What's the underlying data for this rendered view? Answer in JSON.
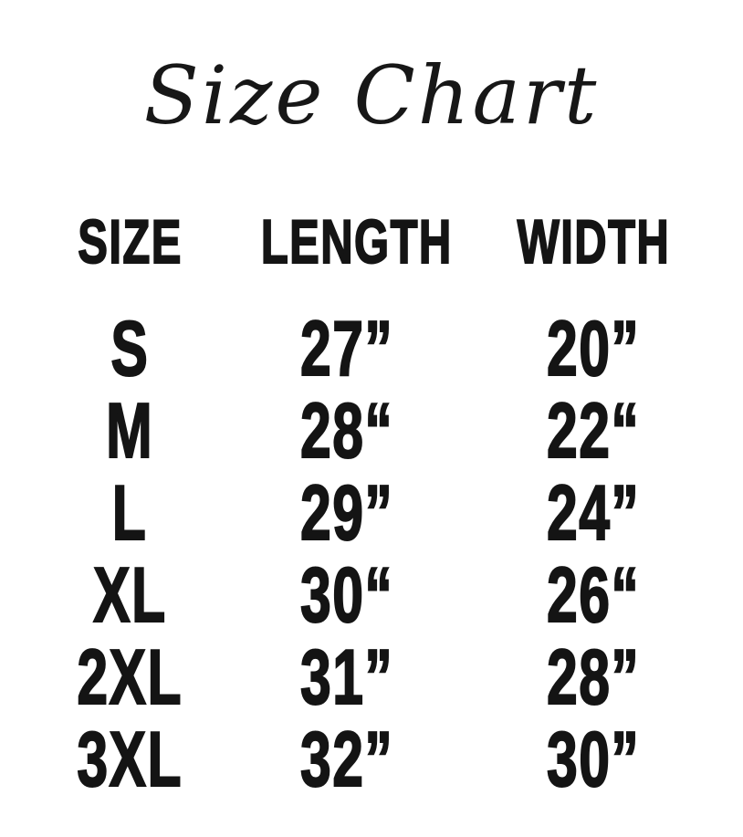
{
  "page": {
    "background_color": "#ffffff",
    "text_color": "#141414"
  },
  "title": "Size Chart",
  "table": {
    "columns": [
      "SIZE",
      "LENGTH",
      "WIDTH"
    ],
    "rows": [
      {
        "size": "S",
        "length": "27”",
        "width": "20”"
      },
      {
        "size": "M",
        "length": "28“",
        "width": "22“"
      },
      {
        "size": "L",
        "length": "29”",
        "width": "24”"
      },
      {
        "size": "XL",
        "length": "30“",
        "width": "26“"
      },
      {
        "size": "2XL",
        "length": "31”",
        "width": "28”"
      },
      {
        "size": "3XL",
        "length": "32”",
        "width": "30”"
      }
    ]
  },
  "chart_data": {
    "type": "table",
    "title": "Size Chart",
    "columns": [
      "SIZE",
      "LENGTH",
      "WIDTH"
    ],
    "units": "inches",
    "rows": [
      {
        "size": "S",
        "length_in": 27,
        "width_in": 20
      },
      {
        "size": "M",
        "length_in": 28,
        "width_in": 22
      },
      {
        "size": "L",
        "length_in": 29,
        "width_in": 24
      },
      {
        "size": "XL",
        "length_in": 30,
        "width_in": 26
      },
      {
        "size": "2XL",
        "length_in": 31,
        "width_in": 28
      },
      {
        "size": "3XL",
        "length_in": 32,
        "width_in": 30
      }
    ]
  }
}
